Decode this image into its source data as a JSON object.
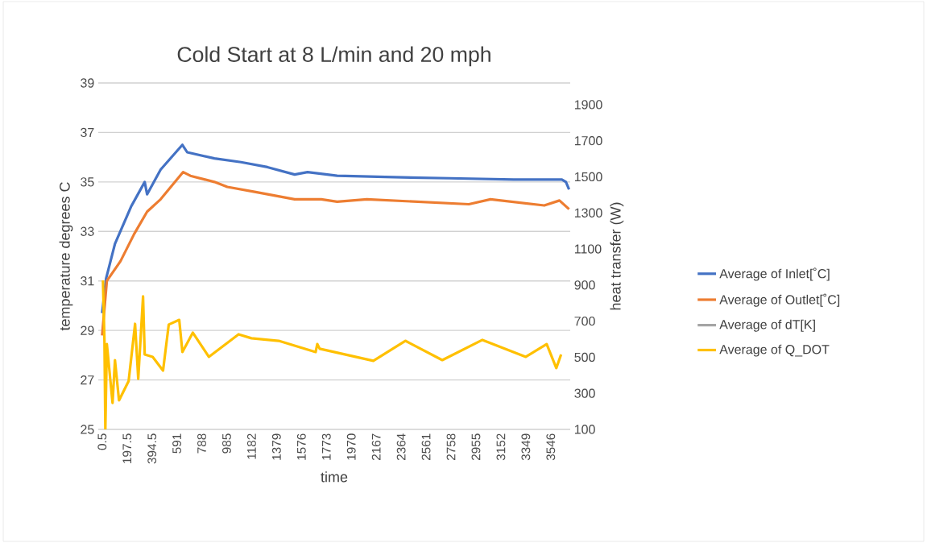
{
  "chart_data": {
    "type": "line",
    "title": "Cold Start at 8 L/min and 20 mph",
    "xlabel": "time",
    "ylabel": "temperature degrees C",
    "y2label": "heat transfer (W)",
    "xlim": [
      -30,
      3700
    ],
    "xticks": [
      0.5,
      197.5,
      394.5,
      591,
      788,
      985,
      1182,
      1379,
      1576,
      1773,
      1970,
      2167,
      2364,
      2561,
      2758,
      2955,
      3152,
      3349,
      3546
    ],
    "ylim": [
      25,
      39
    ],
    "yticks": [
      25,
      27,
      29,
      31,
      33,
      35,
      37,
      39
    ],
    "y2lim": [
      100,
      2020
    ],
    "y2ticks": [
      100,
      300,
      500,
      700,
      900,
      1100,
      1300,
      1500,
      1700,
      1900
    ],
    "grid": "y",
    "legend": "right",
    "marker": "none",
    "line_style": "solid",
    "series": [
      {
        "name": "Average of Inlet[˚C]",
        "color": "#4472c4",
        "x": [
          0.5,
          32,
          102,
          229,
          337,
          356,
          463,
          635,
          673,
          888,
          1098,
          1307,
          1522,
          1624,
          1858,
          2239,
          2746,
          3254,
          3634,
          3666,
          3691
        ],
        "values": [
          29.7,
          31.1,
          32.5,
          34.0,
          35.0,
          34.5,
          35.5,
          36.5,
          36.2,
          35.95,
          35.8,
          35.6,
          35.3,
          35.4,
          35.25,
          35.2,
          35.15,
          35.1,
          35.1,
          35.0,
          34.7
        ]
      },
      {
        "name": "Average of Outlet[˚C]",
        "color": "#ed7d31",
        "x": [
          0.5,
          38,
          146,
          254,
          356,
          463,
          641,
          698,
          888,
          990,
          1206,
          1522,
          1732,
          1858,
          2093,
          2899,
          3070,
          3495,
          3615,
          3691
        ],
        "values": [
          28.8,
          31.0,
          31.8,
          32.9,
          33.8,
          34.3,
          35.4,
          35.25,
          35.0,
          34.8,
          34.6,
          34.3,
          34.3,
          34.2,
          34.3,
          34.1,
          34.3,
          34.05,
          34.25,
          33.9
        ]
      },
      {
        "name": "Average of dT[K]",
        "color": "#a5a5a5",
        "values": [
          null
        ]
      },
      {
        "name": "Average of Q_DOT",
        "color": "#ffc000",
        "axis": "y2",
        "x": [
          7,
          19,
          26,
          38,
          83,
          102,
          134,
          210,
          261,
          286,
          324,
          337,
          400,
          482,
          527,
          610,
          635,
          717,
          844,
          1079,
          1181,
          1396,
          1688,
          1701,
          1720,
          2144,
          2397,
          2689,
          3006,
          3349,
          3514,
          3590,
          3628
        ],
        "values": [
          926,
          591,
          100,
          573,
          247,
          484,
          261,
          368,
          685,
          381,
          837,
          515,
          502,
          426,
          681,
          707,
          529,
          636,
          502,
          627,
          605,
          591,
          529,
          573,
          547,
          480,
          591,
          484,
          596,
          502,
          573,
          440,
          515
        ]
      }
    ]
  }
}
